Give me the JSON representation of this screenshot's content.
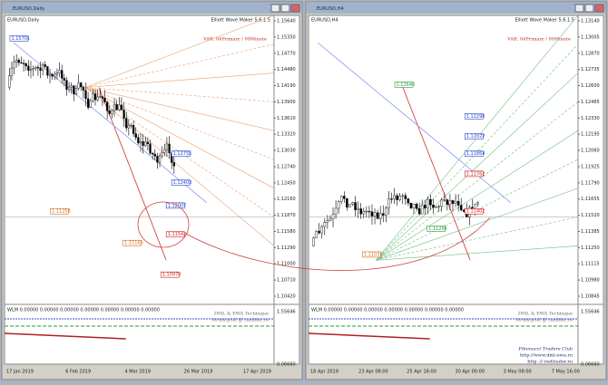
{
  "windows": [
    {
      "title": "EURUSD,Daily",
      "header": {
        "symbol": "EURUSD,Daily",
        "indicator": "Elliott Wave Maker 5.6.1.5",
        "variant": "VAR. 04Primary / 00Minute"
      },
      "price_axis": [
        "1.15640",
        "1.15350",
        "1.14770",
        "1.14480",
        "1.14190",
        "1.13900",
        "1.13610",
        "1.13320",
        "1.13030",
        "1.12740",
        "1.12450",
        "1.12160",
        "1.11870",
        "1.11580",
        "1.11290",
        "1.11000",
        "1.10710",
        "1.10420"
      ],
      "indicator_axis": [
        "1.55646",
        "0.06660"
      ],
      "dates": [
        "17 Jan 2019",
        "6 Feb 2019",
        "4 Mar 2019",
        "26 Mar 2019",
        "17 Apr 2019"
      ],
      "indicator_label": "WLM 0.00000 0.00000 0.00000 0.00000 0.00000 0.00000 0.00000",
      "watermark": [
        "DML & EWA Technique",
        "forum-post @ rambler.ru"
      ],
      "footer": [],
      "price_tags": [
        "1.15701",
        "1.12755",
        "1.12403",
        "1.12007",
        "1.11258",
        "1.11542",
        "1.10970",
        "1.11163"
      ]
    },
    {
      "title": "EURUSD,H4",
      "header": {
        "symbol": "EURUSD,H4",
        "indicator": "Elliott Wave Maker 5.6.1.5",
        "variant": "VAR. 04Primary / 00Minute"
      },
      "price_axis": [
        "1.13140",
        "1.13005",
        "1.12870",
        "1.12735",
        "1.12600",
        "1.12465",
        "1.12330",
        "1.12195",
        "1.12060",
        "1.11925",
        "1.11790",
        "1.11655",
        "1.11520",
        "1.11385",
        "1.11250",
        "1.11115",
        "1.10980",
        "1.10845"
      ],
      "indicator_axis": [
        "1.55646",
        "0.06660"
      ],
      "dates": [
        "18 Apr 2019",
        "23 Apr 08:00",
        "25 Apr 16:00",
        "30 Apr 00:00",
        "3 May 08:00",
        "7 May 16:00"
      ],
      "indicator_label": "WLM 0.00000 0.00000 0.00000 0.00000 0.00000 0.00000 0.00000",
      "watermark": [
        "DML & EWA Technique",
        "forum-post @ rambler.ru"
      ],
      "footer": [
        "Fibonacci   Traders   Club",
        "http://www.dml-ewa.ru",
        "http :// redtrader.ru"
      ],
      "price_tags": [
        "1.12640",
        "1.12290",
        "1.12027",
        "1.11864",
        "1.11762",
        "1.11402",
        "1.11266",
        "1.11033"
      ]
    }
  ]
}
